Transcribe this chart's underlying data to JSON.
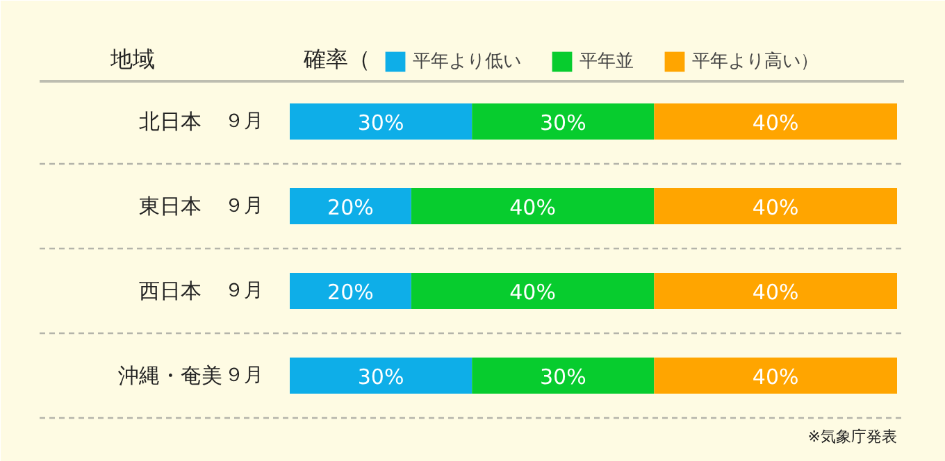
{
  "chart_data": {
    "type": "bar",
    "orientation": "horizontal",
    "stacked": true,
    "ylabel": "地域",
    "legend_title": "確率（",
    "legend": "top",
    "categories": [
      "北日本",
      "東日本",
      "西日本",
      "沖縄・奄美"
    ],
    "series": [
      {
        "name": "平年より低い",
        "color": "#0eaee8",
        "values": [
          30,
          20,
          20,
          30
        ],
        "value_labels": [
          "30%",
          "20%",
          "20%",
          "30%"
        ]
      },
      {
        "name": "平年並",
        "color": "#07cc2e",
        "values": [
          30,
          40,
          40,
          30
        ],
        "value_labels": [
          "30%",
          "40%",
          "40%",
          "30%"
        ]
      },
      {
        "name": "平年より高い）",
        "color": "#ffa500",
        "values": [
          40,
          40,
          40,
          40
        ],
        "value_labels": [
          "40%",
          "40%",
          "40%",
          "40%"
        ]
      }
    ],
    "grid": "y",
    "annotations": [
      "９月",
      "９月",
      "９月",
      "９月",
      "※気象庁発表"
    ]
  }
}
